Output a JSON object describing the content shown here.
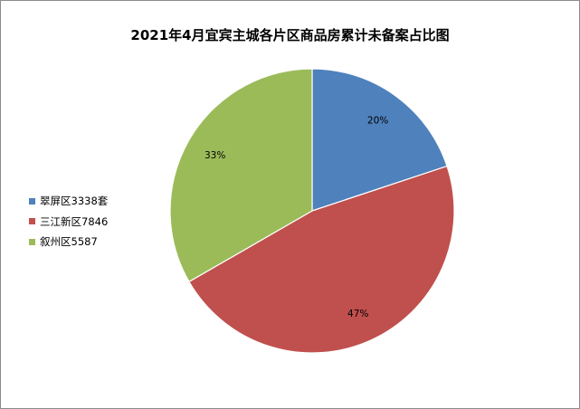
{
  "chart_data": {
    "type": "pie",
    "title": "2021年4月宜宾主城各片区商品房累计未备案占比图",
    "categories": [
      "翠屏区3338套",
      "三江新区7846",
      "叙州区5587"
    ],
    "values": [
      3338,
      7846,
      5587
    ],
    "data_labels": [
      "20%",
      "47%",
      "33%"
    ],
    "colors": [
      "#4f81bd",
      "#c0504d",
      "#9bbb59"
    ],
    "legend_position": "left"
  }
}
